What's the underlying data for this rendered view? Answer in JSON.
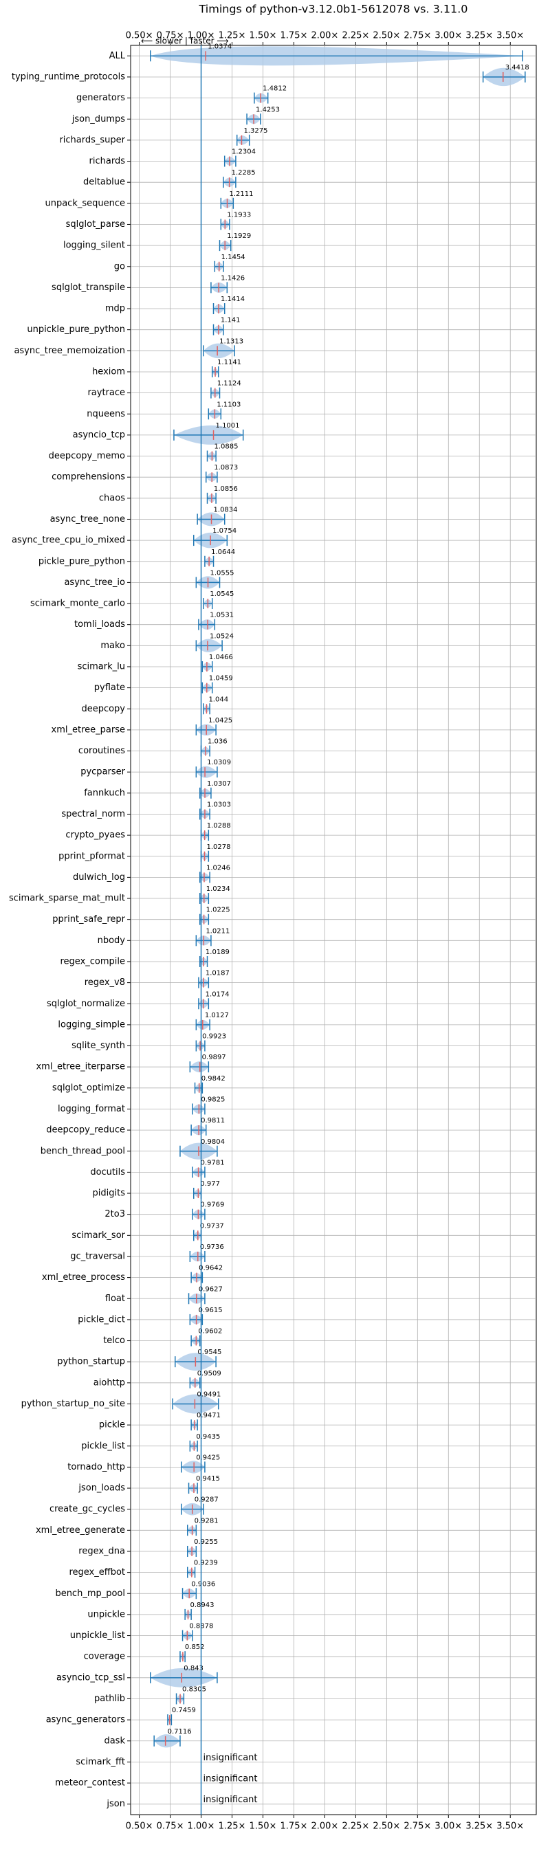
{
  "chart_data": {
    "type": "violin",
    "title": "Timings of python-v3.12.0b1-5612078 vs. 3.11.0",
    "annotation": "⟵ slower | faster ⟶",
    "categories": [
      "ALL",
      "typing_runtime_protocols",
      "generators",
      "json_dumps",
      "richards_super",
      "richards",
      "deltablue",
      "unpack_sequence",
      "sqlglot_parse",
      "logging_silent",
      "go",
      "sqlglot_transpile",
      "mdp",
      "unpickle_pure_python",
      "async_tree_memoization",
      "hexiom",
      "raytrace",
      "nqueens",
      "asyncio_tcp",
      "deepcopy_memo",
      "comprehensions",
      "chaos",
      "async_tree_none",
      "async_tree_cpu_io_mixed",
      "pickle_pure_python",
      "async_tree_io",
      "scimark_monte_carlo",
      "tomli_loads",
      "mako",
      "scimark_lu",
      "pyflate",
      "deepcopy",
      "xml_etree_parse",
      "coroutines",
      "pycparser",
      "fannkuch",
      "spectral_norm",
      "crypto_pyaes",
      "pprint_pformat",
      "dulwich_log",
      "scimark_sparse_mat_mult",
      "pprint_safe_repr",
      "nbody",
      "regex_compile",
      "regex_v8",
      "sqlglot_normalize",
      "logging_simple",
      "sqlite_synth",
      "xml_etree_iterparse",
      "sqlglot_optimize",
      "logging_format",
      "deepcopy_reduce",
      "bench_thread_pool",
      "docutils",
      "pidigits",
      "2to3",
      "scimark_sor",
      "gc_traversal",
      "xml_etree_process",
      "float",
      "pickle_dict",
      "telco",
      "python_startup",
      "aiohttp",
      "python_startup_no_site",
      "pickle",
      "pickle_list",
      "tornado_http",
      "json_loads",
      "create_gc_cycles",
      "xml_etree_generate",
      "regex_dna",
      "regex_effbot",
      "bench_mp_pool",
      "unpickle",
      "unpickle_list",
      "coverage",
      "asyncio_tcp_ssl",
      "pathlib",
      "async_generators",
      "dask",
      "scimark_fft",
      "meteor_contest",
      "json"
    ],
    "values": [
      1.0374,
      3.4418,
      1.4812,
      1.4253,
      1.3275,
      1.2304,
      1.2285,
      1.2111,
      1.1933,
      1.1929,
      1.1454,
      1.1426,
      1.1414,
      1.141,
      1.1313,
      1.1141,
      1.1124,
      1.1103,
      1.1001,
      1.0885,
      1.0873,
      1.0856,
      1.0834,
      1.0754,
      1.0644,
      1.0555,
      1.0545,
      1.0531,
      1.0524,
      1.0466,
      1.0459,
      1.044,
      1.0425,
      1.036,
      1.0309,
      1.0307,
      1.0303,
      1.0288,
      1.0278,
      1.0246,
      1.0234,
      1.0225,
      1.0211,
      1.0189,
      1.0187,
      1.0174,
      1.0127,
      0.9923,
      0.9897,
      0.9842,
      0.9825,
      0.9811,
      0.9804,
      0.9781,
      0.977,
      0.9769,
      0.9737,
      0.9736,
      0.9642,
      0.9627,
      0.9615,
      0.9602,
      0.9545,
      0.9509,
      0.9491,
      0.9471,
      0.9435,
      0.9425,
      0.9415,
      0.9287,
      0.9281,
      0.9255,
      0.9239,
      0.9036,
      0.8943,
      0.8878,
      0.852,
      0.843,
      0.8305,
      0.7459,
      0.7116,
      null,
      null,
      null
    ],
    "value_labels": [
      null,
      null,
      null,
      null,
      null,
      null,
      null,
      null,
      null,
      null,
      null,
      null,
      null,
      null,
      null,
      null,
      null,
      null,
      null,
      null,
      null,
      null,
      null,
      null,
      null,
      null,
      null,
      null,
      null,
      null,
      null,
      null,
      null,
      null,
      null,
      null,
      null,
      null,
      null,
      null,
      null,
      null,
      null,
      null,
      null,
      null,
      null,
      null,
      null,
      null,
      null,
      null,
      null,
      null,
      null,
      null,
      null,
      null,
      null,
      null,
      null,
      null,
      null,
      null,
      null,
      null,
      null,
      null,
      null,
      null,
      null,
      null,
      null,
      null,
      null,
      null,
      null,
      null,
      null,
      null,
      null,
      "insignificant",
      "insignificant",
      "insignificant"
    ],
    "lows": [
      0.59,
      3.28,
      1.43,
      1.37,
      1.29,
      1.19,
      1.18,
      1.16,
      1.16,
      1.15,
      1.11,
      1.08,
      1.1,
      1.1,
      1.02,
      1.09,
      1.08,
      1.06,
      0.78,
      1.05,
      1.04,
      1.05,
      0.97,
      0.94,
      1.03,
      0.96,
      1.02,
      0.98,
      0.96,
      1.01,
      1.01,
      1.02,
      0.96,
      1.0,
      0.96,
      0.99,
      0.99,
      1.0,
      1.0,
      0.99,
      0.99,
      0.99,
      0.96,
      0.99,
      0.98,
      0.98,
      0.96,
      0.96,
      0.91,
      0.95,
      0.93,
      0.92,
      0.83,
      0.93,
      0.94,
      0.93,
      0.94,
      0.91,
      0.92,
      0.9,
      0.91,
      0.92,
      0.79,
      0.91,
      0.77,
      0.92,
      0.91,
      0.84,
      0.9,
      0.84,
      0.89,
      0.89,
      0.89,
      0.85,
      0.87,
      0.85,
      0.83,
      0.59,
      0.8,
      0.73,
      0.62,
      null,
      null,
      null
    ],
    "highs": [
      3.6,
      3.62,
      1.54,
      1.48,
      1.39,
      1.28,
      1.28,
      1.26,
      1.23,
      1.24,
      1.18,
      1.21,
      1.19,
      1.18,
      1.27,
      1.14,
      1.15,
      1.16,
      1.34,
      1.12,
      1.13,
      1.12,
      1.19,
      1.21,
      1.1,
      1.15,
      1.09,
      1.11,
      1.17,
      1.09,
      1.09,
      1.07,
      1.12,
      1.07,
      1.13,
      1.08,
      1.07,
      1.06,
      1.06,
      1.07,
      1.06,
      1.06,
      1.08,
      1.05,
      1.06,
      1.06,
      1.07,
      1.03,
      1.06,
      1.01,
      1.03,
      1.04,
      1.13,
      1.03,
      1.0,
      1.03,
      1.0,
      1.03,
      1.01,
      1.03,
      1.01,
      0.99,
      1.12,
      0.99,
      1.14,
      0.97,
      0.97,
      1.03,
      0.97,
      1.02,
      0.96,
      0.96,
      0.95,
      0.96,
      0.92,
      0.93,
      0.87,
      1.13,
      0.86,
      0.76,
      0.83,
      null,
      null,
      null
    ],
    "xlim": [
      0.43,
      3.71
    ],
    "xticks": [
      {
        "value": 0.5,
        "label": "0.50×"
      },
      {
        "value": 0.75,
        "label": "0.75×"
      },
      {
        "value": 1.0,
        "label": "1.00×"
      },
      {
        "value": 1.25,
        "label": "1.25×"
      },
      {
        "value": 1.5,
        "label": "1.50×"
      },
      {
        "value": 1.75,
        "label": "1.75×"
      },
      {
        "value": 2.0,
        "label": "2.00×"
      },
      {
        "value": 2.25,
        "label": "2.25×"
      },
      {
        "value": 2.5,
        "label": "2.50×"
      },
      {
        "value": 2.75,
        "label": "2.75×"
      },
      {
        "value": 3.0,
        "label": "3.00×"
      },
      {
        "value": 3.25,
        "label": "3.25×"
      },
      {
        "value": 3.5,
        "label": "3.50×"
      }
    ],
    "ref_x": 1,
    "grid": true,
    "color": "#1f77b4",
    "fill_color": "#aecbe8",
    "median_color": "#e06060"
  }
}
